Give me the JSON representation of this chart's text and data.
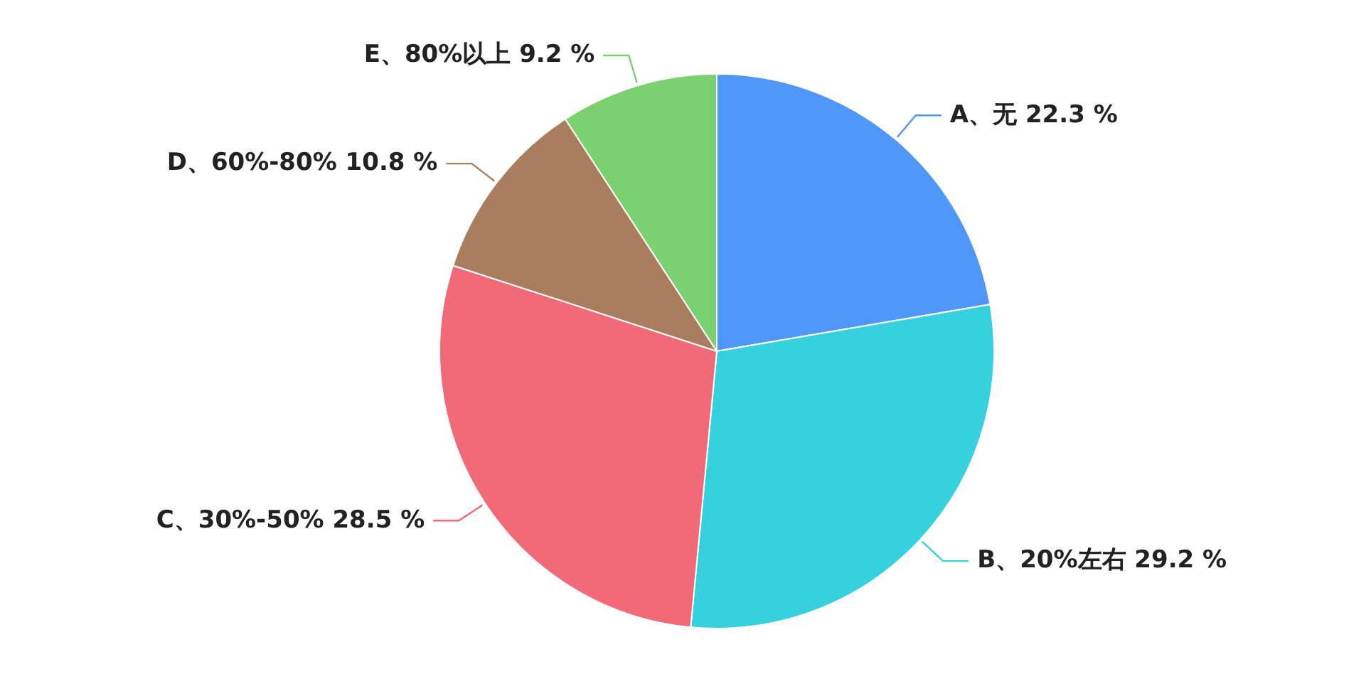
{
  "chart_data": {
    "type": "pie",
    "categories": [
      "A、无",
      "B、20%左右",
      "C、30%-50%",
      "D、60%-80%",
      "E、80%以上"
    ],
    "values": [
      22.3,
      29.2,
      28.5,
      10.8,
      9.2
    ],
    "value_labels": [
      "22.3 %",
      "29.2 %",
      "28.5 %",
      "10.8 %",
      "9.2 %"
    ],
    "colors": [
      "#4f97fb",
      "#36d0de",
      "#f06a78",
      "#a97e5e",
      "#7bd170"
    ]
  }
}
